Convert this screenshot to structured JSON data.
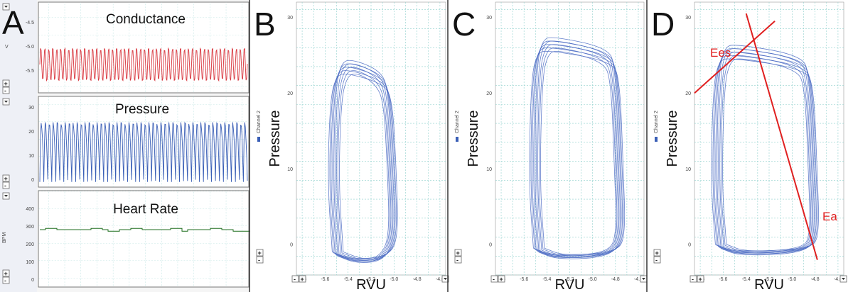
{
  "panel_letters": [
    "A",
    "B",
    "C",
    "D"
  ],
  "panelA": {
    "traces": [
      {
        "title": "Conductance",
        "yticks": [
          "-4.5",
          "-5.0",
          "-5.5"
        ],
        "unit": "V",
        "color": "#d9363e"
      },
      {
        "title": "Pressure",
        "yticks": [
          "30",
          "20",
          "10",
          "0"
        ],
        "unit": "",
        "color": "#3a5fb6"
      },
      {
        "title": "Heart Rate",
        "yticks": [
          "400",
          "300",
          "200",
          "100",
          "0"
        ],
        "unit": "BPM",
        "color": "#1f6e1f"
      }
    ]
  },
  "loop_panels": [
    {
      "letter": "B",
      "ylabel": "Pressure",
      "xlabel": "RVU",
      "legend": "Channel 2"
    },
    {
      "letter": "C",
      "ylabel": "Pressure",
      "xlabel": "RVU",
      "legend": "Channel 2"
    },
    {
      "letter": "D",
      "ylabel": "Pressure",
      "xlabel": "RVU",
      "legend": "Channel 2",
      "annotations": [
        "Ees",
        "Ea"
      ]
    }
  ],
  "chart_data": [
    {
      "type": "line",
      "title": "Conductance",
      "ylim": [
        -5.8,
        -4.2
      ],
      "yticks": [
        -4.5,
        -5.0,
        -5.5
      ],
      "series": [
        {
          "values_range": [
            -5.6,
            -5.0
          ],
          "cycles": 52
        }
      ]
    },
    {
      "type": "line",
      "title": "Pressure",
      "ylim": [
        -2,
        33
      ],
      "yticks": [
        0,
        10,
        20,
        30
      ],
      "series": [
        {
          "values_range": [
            0,
            23
          ],
          "cycles": 52
        }
      ]
    },
    {
      "type": "line",
      "title": "Heart Rate",
      "ylim": [
        0,
        470
      ],
      "yticks": [
        0,
        100,
        200,
        300,
        400
      ],
      "series": [
        {
          "values_range": [
            270,
            290
          ],
          "mean": 280
        }
      ]
    },
    {
      "type": "line",
      "xlabel": "RVU",
      "ylabel": "Pressure",
      "xlim": [
        -5.85,
        -4.55
      ],
      "ylim": [
        -4,
        32
      ],
      "xticks": [
        -5.8,
        -5.6,
        -5.4,
        -5.2,
        -5.0,
        -4.8,
        -4.6
      ],
      "yticks": [
        0,
        10,
        20,
        30
      ],
      "legend": "Channel 2",
      "series": [
        {
          "name": "Channel 2",
          "loop": {
            "x_min": -5.52,
            "x_max": -5.0,
            "p_min": -2.5,
            "p_max": 24.5
          }
        }
      ]
    },
    {
      "type": "line",
      "xlabel": "RVU",
      "ylabel": "Pressure",
      "xlim": [
        -5.85,
        -4.55
      ],
      "ylim": [
        -4,
        32
      ],
      "xticks": [
        -5.8,
        -5.6,
        -5.4,
        -5.2,
        -5.0,
        -4.8,
        -4.6
      ],
      "yticks": [
        0,
        10,
        20,
        30
      ],
      "legend": "Channel 2",
      "series": [
        {
          "name": "Channel 2",
          "loop": {
            "x_min": -5.5,
            "x_max": -4.75,
            "p_min": -2.0,
            "p_max": 27.5
          }
        }
      ]
    },
    {
      "type": "line",
      "xlabel": "RVU",
      "ylabel": "Pressure",
      "xlim": [
        -5.85,
        -4.55
      ],
      "ylim": [
        -4,
        32
      ],
      "xticks": [
        -5.8,
        -5.6,
        -5.4,
        -5.2,
        -5.0,
        -4.8,
        -4.6
      ],
      "yticks": [
        0,
        10,
        20,
        30
      ],
      "legend": "Channel 2",
      "series": [
        {
          "name": "Channel 2",
          "loop": {
            "x_min": -5.65,
            "x_max": -4.8,
            "p_min": -1.5,
            "p_max": 26.5
          }
        }
      ],
      "lines": [
        {
          "name": "Ees",
          "from": [
            -5.85,
            20.0
          ],
          "to": [
            -5.15,
            29.5
          ]
        },
        {
          "name": "Ea",
          "from": [
            -5.4,
            30.5
          ],
          "to": [
            -4.78,
            -2.0
          ]
        }
      ]
    }
  ]
}
